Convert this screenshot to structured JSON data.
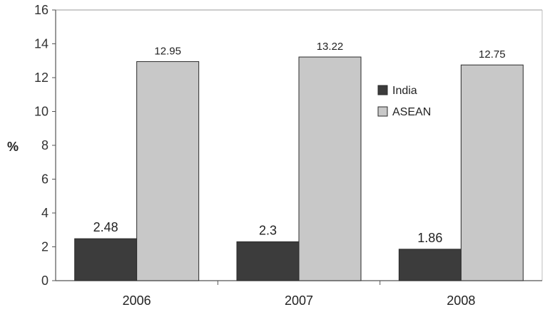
{
  "chart_data": {
    "type": "bar",
    "title": "",
    "xlabel": "",
    "ylabel": "%",
    "ylim": [
      0,
      16
    ],
    "yticks": [
      0,
      2,
      4,
      6,
      8,
      10,
      12,
      14,
      16
    ],
    "categories": [
      "2006",
      "2007",
      "2008"
    ],
    "series": [
      {
        "name": "India",
        "values": [
          2.48,
          2.3,
          1.86
        ],
        "color": "#3c3c3c"
      },
      {
        "name": "ASEAN",
        "values": [
          12.95,
          13.22,
          12.75
        ],
        "color": "#c8c8c8"
      }
    ],
    "legend_position": "right",
    "grid": false
  }
}
